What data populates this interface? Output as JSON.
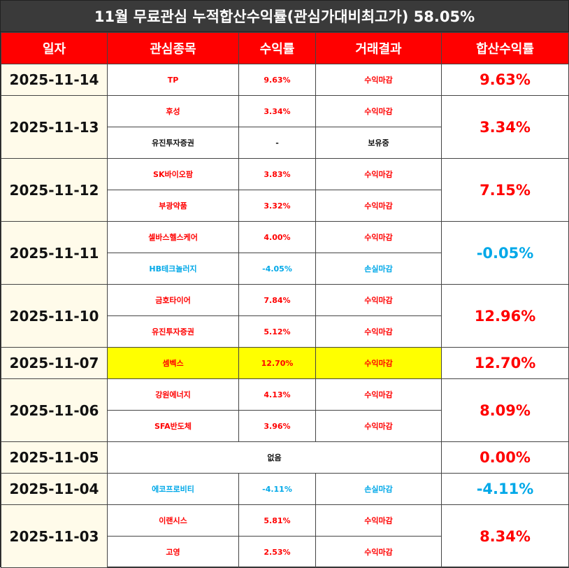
{
  "title": "11월 무료관심 누적합산수익률(관심가대비최고가) 58.05%",
  "colors": {
    "header_bg": "#ff0000",
    "title_bg": "#3a3a3a",
    "profit": "#ff0000",
    "loss": "#00a8e8",
    "highlight": "#ffff00",
    "date_bg": "#fffbea"
  },
  "headers": {
    "date": "일자",
    "stock": "관심종목",
    "return": "수익률",
    "result": "거래결과",
    "total": "합산수익률"
  },
  "groups": [
    {
      "date": "2025-11-14",
      "total": "9.63%",
      "total_color": "red",
      "rows": [
        {
          "stock": "TP",
          "return": "9.63%",
          "result": "수익마감",
          "color": "red"
        }
      ]
    },
    {
      "date": "2025-11-13",
      "total": "3.34%",
      "total_color": "red",
      "rows": [
        {
          "stock": "후성",
          "return": "3.34%",
          "result": "수익마감",
          "color": "red"
        },
        {
          "stock": "유진투자증권",
          "return": "-",
          "result": "보유중",
          "color": "black"
        }
      ]
    },
    {
      "date": "2025-11-12",
      "total": "7.15%",
      "total_color": "red",
      "rows": [
        {
          "stock": "SK바이오팜",
          "return": "3.83%",
          "result": "수익마감",
          "color": "red"
        },
        {
          "stock": "부광약품",
          "return": "3.32%",
          "result": "수익마감",
          "color": "red"
        }
      ]
    },
    {
      "date": "2025-11-11",
      "total": "-0.05%",
      "total_color": "blue",
      "rows": [
        {
          "stock": "셀바스헬스케어",
          "return": "4.00%",
          "result": "수익마감",
          "color": "red"
        },
        {
          "stock": "HB테크놀러지",
          "return": "-4.05%",
          "result": "손실마감",
          "color": "blue"
        }
      ]
    },
    {
      "date": "2025-11-10",
      "total": "12.96%",
      "total_color": "red",
      "rows": [
        {
          "stock": "금호타이어",
          "return": "7.84%",
          "result": "수익마감",
          "color": "red"
        },
        {
          "stock": "유진투자증권",
          "return": "5.12%",
          "result": "수익마감",
          "color": "red"
        }
      ]
    },
    {
      "date": "2025-11-07",
      "total": "12.70%",
      "total_color": "red",
      "rows": [
        {
          "stock": "셈벡스",
          "return": "12.70%",
          "result": "수익마감",
          "color": "red",
          "highlight": true
        }
      ]
    },
    {
      "date": "2025-11-06",
      "total": "8.09%",
      "total_color": "red",
      "rows": [
        {
          "stock": "강원에너지",
          "return": "4.13%",
          "result": "수익마감",
          "color": "red"
        },
        {
          "stock": "SFA반도체",
          "return": "3.96%",
          "result": "수익마감",
          "color": "red"
        }
      ]
    },
    {
      "date": "2025-11-05",
      "total": "0.00%",
      "total_color": "red",
      "rows": [
        {
          "none": "없음",
          "color": "black"
        }
      ]
    },
    {
      "date": "2025-11-04",
      "total": "-4.11%",
      "total_color": "blue",
      "rows": [
        {
          "stock": "에코프로비티",
          "return": "-4.11%",
          "result": "손실마감",
          "color": "blue"
        }
      ]
    },
    {
      "date": "2025-11-03",
      "total": "8.34%",
      "total_color": "red",
      "rows": [
        {
          "stock": "이랜시스",
          "return": "5.81%",
          "result": "수익마감",
          "color": "red"
        },
        {
          "stock": "고영",
          "return": "2.53%",
          "result": "수익마감",
          "color": "red"
        }
      ]
    }
  ]
}
